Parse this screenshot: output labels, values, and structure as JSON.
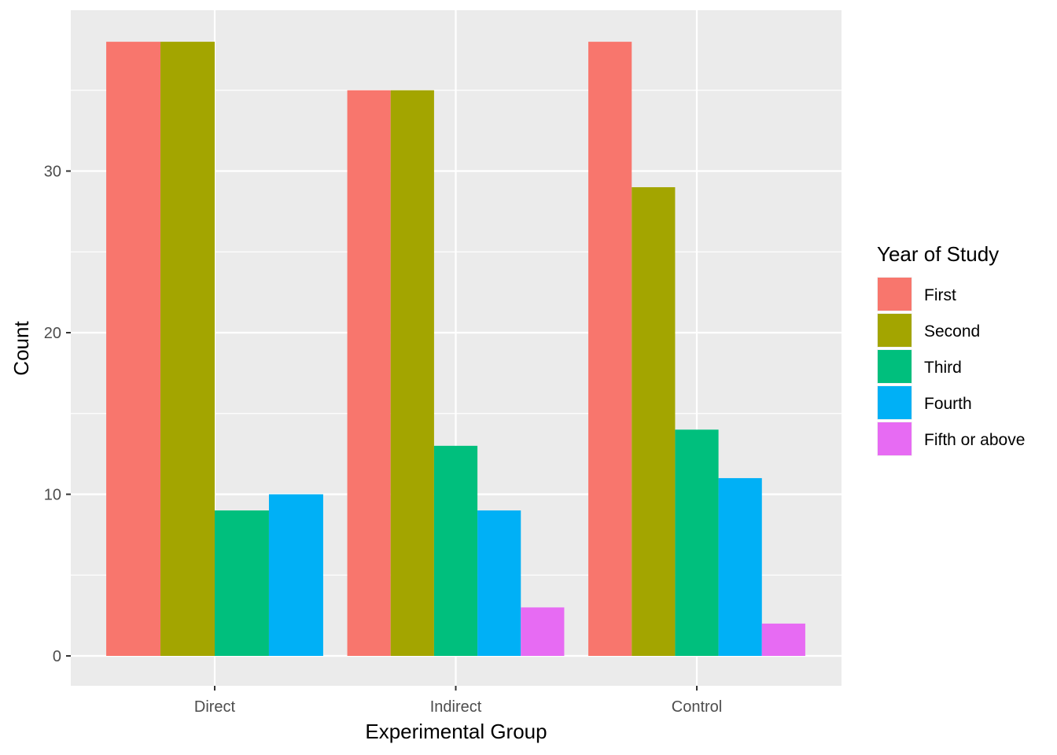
{
  "chart_data": {
    "type": "bar",
    "xlabel": "Experimental Group",
    "ylabel": "Count",
    "ylim": [
      -1.9,
      40
    ],
    "y_ticks": [
      0,
      10,
      20,
      30
    ],
    "y_tick_labels": [
      "0",
      "10",
      "20",
      "30"
    ],
    "grid": true,
    "legend": {
      "title": "Year of Study",
      "position": "right"
    },
    "categories": [
      "Direct",
      "Indirect",
      "Control"
    ],
    "series": [
      {
        "name": "First",
        "color": "#F8766D",
        "values": [
          38,
          35,
          38
        ]
      },
      {
        "name": "Second",
        "color": "#A3A500",
        "values": [
          38,
          35,
          29
        ]
      },
      {
        "name": "Third",
        "color": "#00BF7D",
        "values": [
          9,
          13,
          14
        ]
      },
      {
        "name": "Fourth",
        "color": "#00B0F6",
        "values": [
          10,
          9,
          11
        ]
      },
      {
        "name": "Fifth or above",
        "color": "#E76BF3",
        "values": [
          0,
          3,
          2
        ]
      }
    ],
    "panel_background": "#EBEBEB",
    "grid_color": "#FFFFFF"
  }
}
